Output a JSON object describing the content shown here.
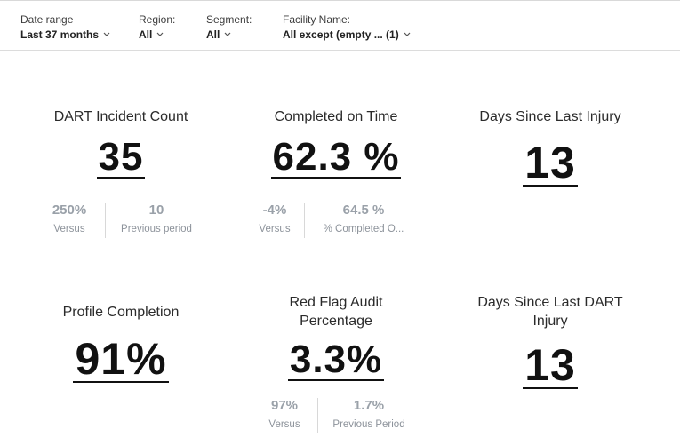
{
  "filters": [
    {
      "label": "Date range",
      "value": "Last 37 months"
    },
    {
      "label": "Region:",
      "value": "All"
    },
    {
      "label": "Segment:",
      "value": "All"
    },
    {
      "label": "Facility Name:",
      "value": "All except (empty ... (1)"
    }
  ],
  "kpis": {
    "dart_incident_count": {
      "title": "DART Incident Count",
      "value": "35",
      "comparison": [
        {
          "value": "250%",
          "label": "Versus"
        },
        {
          "value": "10",
          "label": "Previous period"
        }
      ]
    },
    "completed_on_time": {
      "title": "Completed on Time",
      "value": "62.3 %",
      "comparison": [
        {
          "value": "-4%",
          "label": "Versus"
        },
        {
          "value": "64.5 %",
          "label": "% Completed O..."
        }
      ]
    },
    "days_since_last_injury": {
      "title": "Days Since Last Injury",
      "value": "13"
    },
    "profile_completion": {
      "title": "Profile Completion",
      "value": "91%"
    },
    "red_flag_audit_percentage": {
      "title": "Red Flag Audit Percentage",
      "value": "3.3%",
      "comparison": [
        {
          "value": "97%",
          "label": "Versus"
        },
        {
          "value": "1.7%",
          "label": "Previous Period"
        }
      ]
    },
    "days_since_last_dart_injury": {
      "title": "Days Since Last DART Injury",
      "value": "13"
    }
  },
  "icons": {
    "dropdown": "chevron-down-icon"
  },
  "colors": {
    "value_text": "#111111",
    "muted_text": "#9aa1a9",
    "divider": "#d8d8d8"
  }
}
